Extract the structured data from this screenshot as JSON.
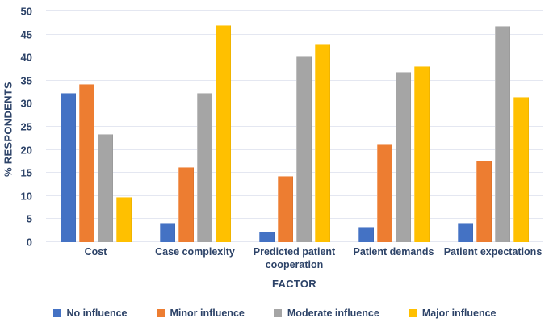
{
  "colors": {
    "text": "#2d4368",
    "gridline": "#e4e7f1",
    "background": "#ffffff",
    "series_blue": "#4472C4",
    "series_orange": "#ED7D31",
    "series_gray": "#A5A5A5",
    "series_yellow": "#FFC000"
  },
  "chart_data": {
    "type": "bar",
    "title": "",
    "xlabel": "FACTOR",
    "ylabel": "% RESPONDENTS",
    "ylim": [
      0,
      50
    ],
    "yticks": [
      0,
      5,
      10,
      15,
      20,
      25,
      30,
      35,
      40,
      45,
      50
    ],
    "grid": true,
    "legend_position": "bottom",
    "categories": [
      "Cost",
      "Case complexity",
      "Predicted patient\ncooperation",
      "Patient demands",
      "Patient expectations"
    ],
    "series": [
      {
        "name": "No influence",
        "color": "#4472C4",
        "values": [
          32.4,
          4.2,
          2.3,
          3.3,
          4.2
        ]
      },
      {
        "name": "Minor influence",
        "color": "#ED7D31",
        "values": [
          34.3,
          16.3,
          14.4,
          21.1,
          17.6
        ]
      },
      {
        "name": "Moderate influence",
        "color": "#A5A5A5",
        "values": [
          23.4,
          32.4,
          40.4,
          36.9,
          46.8
        ]
      },
      {
        "name": "Major influence",
        "color": "#FFC000",
        "values": [
          9.8,
          47.0,
          42.9,
          38.1,
          31.5
        ]
      }
    ]
  }
}
